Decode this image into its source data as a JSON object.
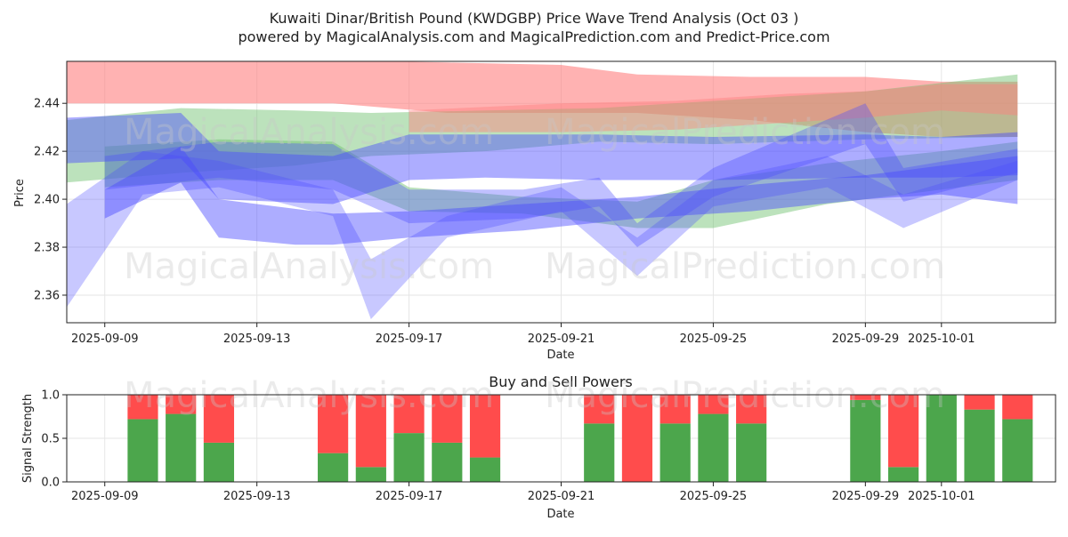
{
  "title_line1": "Kuwaiti Dinar/British Pound (KWDGBP) Price Wave Trend Analysis (Oct 03 )",
  "title_line2": "powered by MagicalAnalysis.com and MagicalPrediction.com and Predict-Price.com",
  "watermarks": [
    "MagicalAnalysis.com",
    "MagicalPrediction.com"
  ],
  "colors": {
    "red": "#ff7f7f",
    "green": "#6abf6a",
    "blue": "#4a4aff",
    "buy": "#4ca64c",
    "sell": "#ff4c4c"
  },
  "chart_data": [
    {
      "type": "area",
      "xlabel": "Date",
      "ylabel": "Price",
      "ylim": [
        2.3485,
        2.4575
      ],
      "yticks": [
        2.36,
        2.38,
        2.4,
        2.42,
        2.44
      ],
      "xticks": [
        "2025-09-09",
        "2025-09-13",
        "2025-09-17",
        "2025-09-21",
        "2025-09-25",
        "2025-09-29",
        "2025-10-01"
      ],
      "xrange": [
        "2025-09-08",
        "2025-10-04"
      ],
      "grid": true,
      "bands": [
        {
          "color": "red",
          "alpha": 0.6,
          "x": [
            "2025-09-08",
            "2025-09-11",
            "2025-09-13",
            "2025-09-15",
            "2025-09-18",
            "2025-09-21",
            "2025-09-23",
            "2025-09-26",
            "2025-09-29",
            "2025-10-01",
            "2025-10-03"
          ],
          "upper": [
            2.458,
            2.458,
            2.458,
            2.458,
            2.457,
            2.456,
            2.452,
            2.451,
            2.451,
            2.449,
            2.449
          ],
          "lower": [
            2.44,
            2.44,
            2.44,
            2.44,
            2.436,
            2.436,
            2.436,
            2.433,
            2.428,
            2.426,
            2.426
          ]
        },
        {
          "color": "green",
          "alpha": 0.45,
          "x": [
            "2025-09-08",
            "2025-09-11",
            "2025-09-14",
            "2025-09-16",
            "2025-09-19",
            "2025-09-22",
            "2025-09-25",
            "2025-09-29",
            "2025-10-03"
          ],
          "upper": [
            2.433,
            2.438,
            2.437,
            2.436,
            2.437,
            2.438,
            2.441,
            2.445,
            2.452
          ],
          "lower": [
            2.407,
            2.411,
            2.414,
            2.418,
            2.42,
            2.424,
            2.423,
            2.425,
            2.426
          ]
        },
        {
          "color": "green",
          "alpha": 0.45,
          "x": [
            "2025-09-09",
            "2025-09-12",
            "2025-09-15",
            "2025-09-17",
            "2025-09-20",
            "2025-09-23",
            "2025-09-25",
            "2025-09-28",
            "2025-10-01",
            "2025-10-03"
          ],
          "upper": [
            2.422,
            2.425,
            2.424,
            2.405,
            2.401,
            2.399,
            2.408,
            2.415,
            2.42,
            2.424
          ],
          "lower": [
            2.405,
            2.408,
            2.408,
            2.395,
            2.394,
            2.388,
            2.388,
            2.398,
            2.404,
            2.408
          ]
        },
        {
          "color": "red",
          "alpha": 0.45,
          "x": [
            "2025-09-17",
            "2025-09-21",
            "2025-09-24",
            "2025-09-27",
            "2025-09-29",
            "2025-10-01",
            "2025-10-03"
          ],
          "upper": [
            2.437,
            2.44,
            2.441,
            2.444,
            2.445,
            2.448,
            2.448
          ],
          "lower": [
            2.428,
            2.428,
            2.429,
            2.432,
            2.434,
            2.437,
            2.435
          ]
        },
        {
          "color": "blue",
          "alpha": 0.45,
          "x": [
            "2025-09-08",
            "2025-09-11",
            "2025-09-12",
            "2025-09-15",
            "2025-09-17",
            "2025-09-19",
            "2025-09-22",
            "2025-09-25",
            "2025-09-29",
            "2025-10-01",
            "2025-10-03"
          ],
          "upper": [
            2.434,
            2.436,
            2.42,
            2.418,
            2.427,
            2.427,
            2.427,
            2.426,
            2.427,
            2.426,
            2.428
          ],
          "lower": [
            2.415,
            2.417,
            2.4,
            2.398,
            2.408,
            2.409,
            2.408,
            2.408,
            2.409,
            2.409,
            2.41
          ]
        },
        {
          "color": "blue",
          "alpha": 0.45,
          "x": [
            "2025-09-09",
            "2025-09-11",
            "2025-09-12",
            "2025-09-14",
            "2025-09-15",
            "2025-09-17",
            "2025-09-20",
            "2025-09-23",
            "2025-09-26",
            "2025-09-29",
            "2025-10-01",
            "2025-10-03"
          ],
          "upper": [
            2.404,
            2.422,
            2.4,
            2.396,
            2.394,
            2.395,
            2.398,
            2.401,
            2.406,
            2.41,
            2.414,
            2.418
          ],
          "lower": [
            2.392,
            2.407,
            2.384,
            2.381,
            2.381,
            2.384,
            2.387,
            2.392,
            2.395,
            2.4,
            2.402,
            2.398
          ]
        },
        {
          "color": "blue",
          "alpha": 0.3,
          "x": [
            "2025-09-08",
            "2025-09-10",
            "2025-09-12",
            "2025-09-15",
            "2025-09-16",
            "2025-09-18",
            "2025-09-21",
            "2025-09-23",
            "2025-09-25",
            "2025-09-28",
            "2025-09-30",
            "2025-10-03"
          ],
          "upper": [
            2.398,
            2.42,
            2.416,
            2.404,
            2.375,
            2.393,
            2.405,
            2.384,
            2.408,
            2.418,
            2.402,
            2.416
          ],
          "lower": [
            2.355,
            2.402,
            2.405,
            2.393,
            2.35,
            2.384,
            2.395,
            2.368,
            2.397,
            2.405,
            2.388,
            2.408
          ]
        },
        {
          "color": "blue",
          "alpha": 0.35,
          "x": [
            "2025-09-09",
            "2025-09-12",
            "2025-09-15",
            "2025-09-17",
            "2025-09-20",
            "2025-09-22",
            "2025-09-23",
            "2025-09-25",
            "2025-09-29",
            "2025-09-30",
            "2025-10-03"
          ],
          "upper": [
            2.418,
            2.424,
            2.423,
            2.404,
            2.404,
            2.409,
            2.39,
            2.413,
            2.44,
            2.413,
            2.421
          ],
          "lower": [
            2.404,
            2.409,
            2.404,
            2.39,
            2.392,
            2.397,
            2.38,
            2.401,
            2.423,
            2.399,
            2.411
          ]
        }
      ]
    },
    {
      "type": "bar",
      "title": "Buy and Sell Powers",
      "xlabel": "Date",
      "ylabel": "Signal Strength",
      "ylim": [
        0,
        1.0
      ],
      "yticks": [
        0.0,
        0.5,
        1.0
      ],
      "xticks": [
        "2025-09-09",
        "2025-09-13",
        "2025-09-17",
        "2025-09-21",
        "2025-09-25",
        "2025-09-29",
        "2025-10-01"
      ],
      "xrange": [
        "2025-09-08",
        "2025-10-04"
      ],
      "dates": [
        "2025-09-10",
        "2025-09-11",
        "2025-09-12",
        "2025-09-15",
        "2025-09-16",
        "2025-09-17",
        "2025-09-18",
        "2025-09-19",
        "2025-09-22",
        "2025-09-23",
        "2025-09-24",
        "2025-09-25",
        "2025-09-26",
        "2025-09-29",
        "2025-09-30",
        "2025-10-01",
        "2025-10-02",
        "2025-10-03"
      ],
      "buy": [
        0.72,
        0.78,
        0.45,
        0.33,
        0.17,
        0.56,
        0.45,
        0.28,
        0.67,
        0.0,
        0.67,
        0.78,
        0.67,
        0.94,
        0.17,
        1.0,
        0.83,
        0.72
      ],
      "sell": [
        0.28,
        0.22,
        0.55,
        0.67,
        0.83,
        0.44,
        0.55,
        0.72,
        0.33,
        1.0,
        0.33,
        0.22,
        0.33,
        0.06,
        0.83,
        0.0,
        0.17,
        0.28
      ]
    }
  ]
}
